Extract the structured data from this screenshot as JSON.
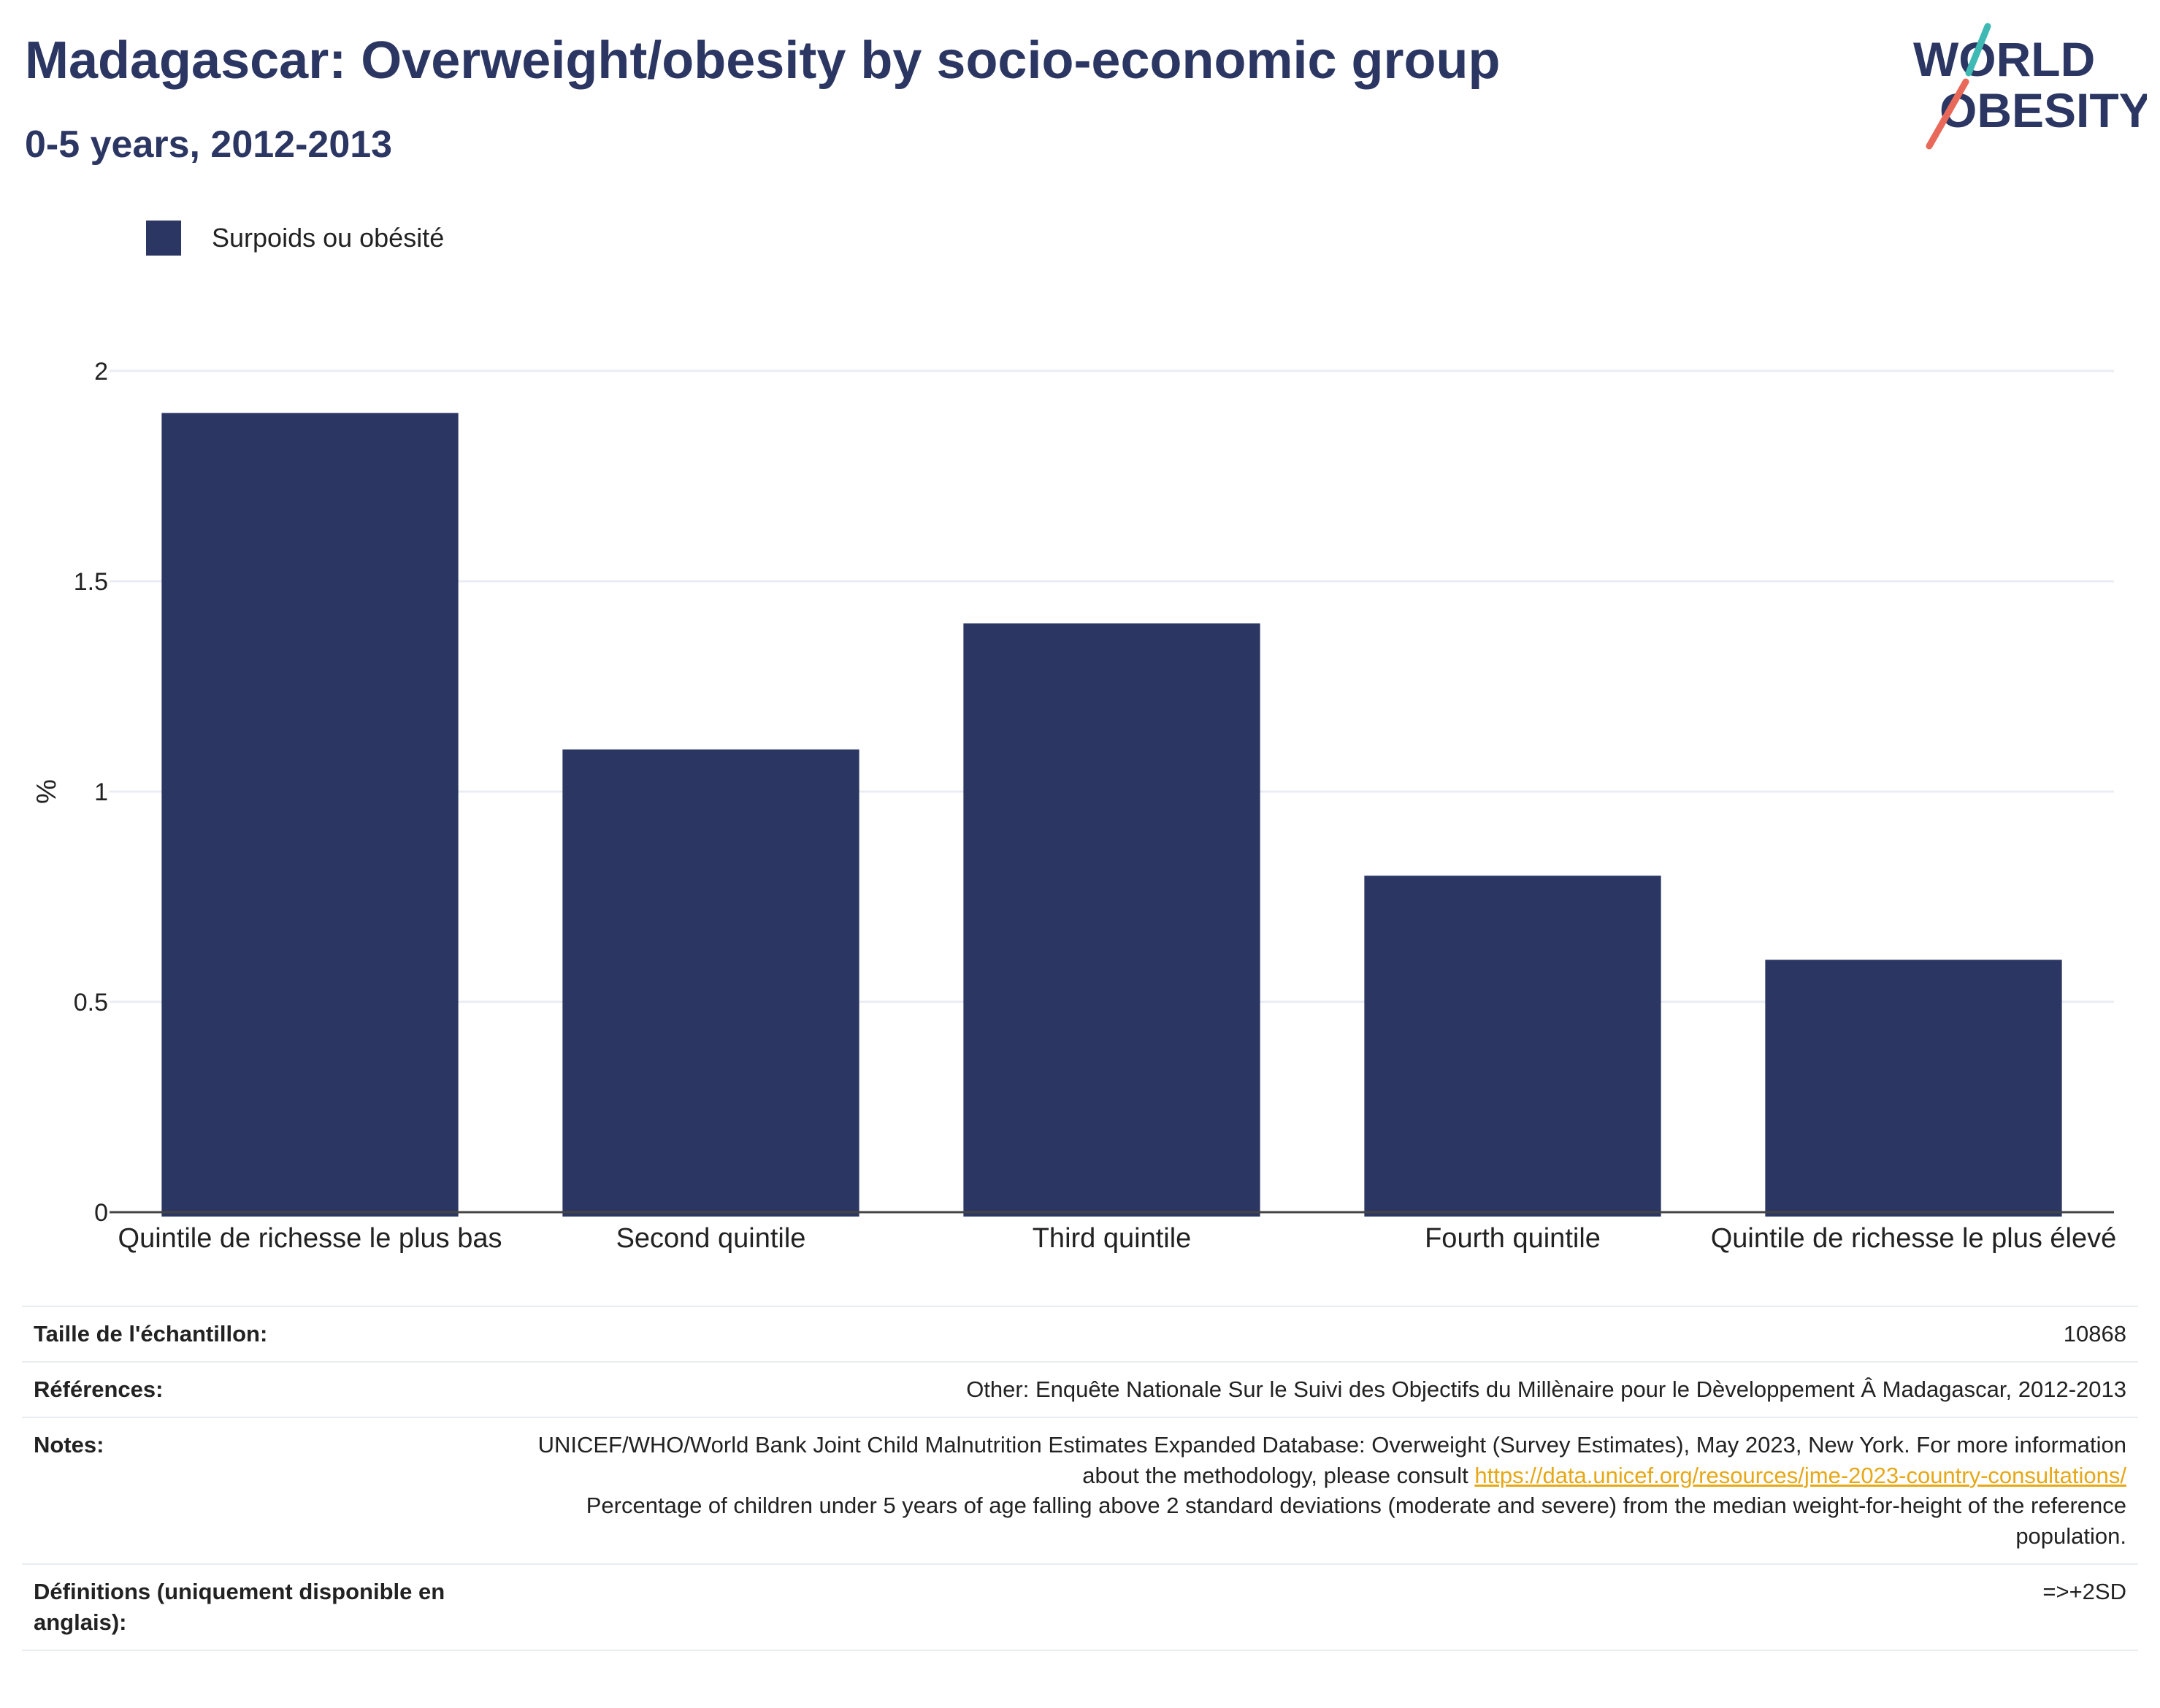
{
  "header": {
    "title": "Madagascar: Overweight/obesity by socio-economic group",
    "subtitle": "0-5 years, 2012-2013"
  },
  "logo": {
    "line1": "WORLD",
    "line2": "OBESITY"
  },
  "colors": {
    "bar": "#2b3663",
    "title": "#2b3663",
    "grid": "#e9ecf3",
    "link": "#e6a817",
    "logo_teal": "#3fb9b4",
    "logo_coral": "#e8695a"
  },
  "chart_data": {
    "type": "bar",
    "categories": [
      "Quintile de richesse le plus bas",
      "Second quintile",
      "Third quintile",
      "Fourth quintile",
      "Quintile de richesse le plus élevé"
    ],
    "series": [
      {
        "name": "Surpoids ou obésité",
        "values": [
          1.9,
          1.1,
          1.4,
          0.8,
          0.6
        ]
      }
    ],
    "ylabel": "%",
    "ylim": [
      0,
      2
    ],
    "yticks": [
      0,
      0.5,
      1,
      1.5,
      2
    ],
    "ytick_labels": [
      "0",
      "0.5",
      "1",
      "1.5",
      "2"
    ],
    "grid": true,
    "legend": "top-left"
  },
  "table": {
    "rows": [
      {
        "key": "Taille de l'échantillon:",
        "value": "10868"
      },
      {
        "key": "Références:",
        "value": "Other: Enquête Nationale Sur le Suivi des Objectifs du Millènaire pour le Dèveloppement Â Madagascar, 2012-2013"
      },
      {
        "key": "Notes:",
        "value_pre": "UNICEF/WHO/World Bank Joint Child Malnutrition Estimates Expanded Database: Overweight (Survey Estimates), May 2023, New York. For more information about the methodology, please consult ",
        "link": "https://data.unicef.org/resources/jme-2023-country-consultations/",
        "value_post": "Percentage of children under 5 years of age falling above 2 standard deviations (moderate and severe) from the median weight-for-height of the reference population."
      },
      {
        "key": "Définitions (uniquement disponible en anglais):",
        "value": "=>+2SD"
      }
    ]
  }
}
